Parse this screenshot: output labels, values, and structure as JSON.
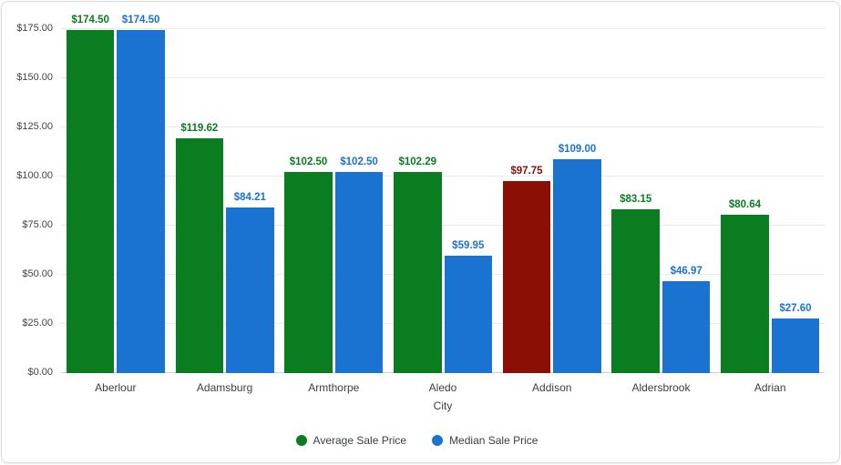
{
  "chart_data": {
    "type": "bar",
    "title": "",
    "xlabel": "City",
    "ylabel": "",
    "ylim": [
      0,
      175
    ],
    "grid": true,
    "legend_position": "bottom",
    "yticks": [
      {
        "value": 0,
        "label": "$0.00"
      },
      {
        "value": 25,
        "label": "$25.00"
      },
      {
        "value": 50,
        "label": "$50.00"
      },
      {
        "value": 75,
        "label": "$75.00"
      },
      {
        "value": 100,
        "label": "$100.00"
      },
      {
        "value": 125,
        "label": "$125.00"
      },
      {
        "value": 150,
        "label": "$150.00"
      },
      {
        "value": 175,
        "label": "$175.00"
      }
    ],
    "categories": [
      "Aberlour",
      "Adamsburg",
      "Armthorpe",
      "Aledo",
      "Addison",
      "Aldersbrook",
      "Adrian"
    ],
    "series": [
      {
        "name": "Average Sale Price",
        "color": "#0b7d21",
        "label_color": "#0b7d21",
        "values": [
          174.5,
          119.62,
          102.5,
          102.29,
          97.75,
          83.15,
          80.64
        ],
        "labels": [
          "$174.50",
          "$119.62",
          "$102.50",
          "$102.29",
          "$97.75",
          "$83.15",
          "$80.64"
        ],
        "overrides": [
          {
            "index": 4,
            "color": "#8b0f04",
            "label_color": "#8b0f04"
          }
        ]
      },
      {
        "name": "Median Sale Price",
        "color": "#1a73d1",
        "label_color": "#1a73d1",
        "values": [
          174.5,
          84.21,
          102.5,
          59.95,
          109.0,
          46.97,
          27.6
        ],
        "labels": [
          "$174.50",
          "$84.21",
          "$102.50",
          "$59.95",
          "$109.00",
          "$46.97",
          "$27.60"
        ],
        "overrides": []
      }
    ]
  }
}
